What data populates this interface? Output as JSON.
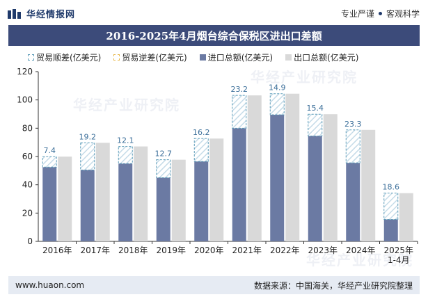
{
  "header": {
    "brand": "华经情报网",
    "slogan_left": "专业严谨",
    "slogan_right": "客观科学"
  },
  "watermark": "华经产业研究院",
  "footer": {
    "website": "www.huaon.com",
    "source": "数据来源：中国海关，华经产业研究院整理"
  },
  "colors": {
    "title_bg": "#3c4b7a",
    "import": "#6b7aa3",
    "export": "#d9d9d9",
    "surplus_border": "#5a9bb8",
    "deficit_border": "#e8b84a"
  },
  "chart_data": {
    "type": "bar",
    "title": "2016-2025年4月烟台综合保税区进出口差额",
    "categories": [
      "2016年",
      "2017年",
      "2018年",
      "2019年",
      "2020年",
      "2021年",
      "2022年",
      "2023年",
      "2024年",
      "2025年\n1-4月"
    ],
    "series": [
      {
        "name": "贸易顺差(亿美元)",
        "values": [
          7.4,
          19.2,
          12.1,
          12.7,
          16.2,
          23.2,
          14.9,
          15.4,
          23.3,
          18.6
        ]
      },
      {
        "name": "贸易逆差(亿美元)",
        "values": [
          0,
          0,
          0,
          0,
          0,
          0,
          0,
          0,
          0,
          0
        ]
      },
      {
        "name": "进口总额(亿美元)",
        "values": [
          52.5,
          50.5,
          55,
          45,
          56.5,
          80,
          89.5,
          74.5,
          55.5,
          15.5
        ]
      },
      {
        "name": "出口总额(亿美元)",
        "values": [
          59.9,
          69.7,
          67.1,
          57.7,
          72.7,
          103.2,
          104.4,
          89.9,
          78.8,
          34.1
        ]
      }
    ],
    "data_labels": [
      "7.4",
      "19.2",
      "12.1",
      "12.7",
      "16.2",
      "23.2",
      "14.9",
      "15.4",
      "23.3",
      "18.6"
    ],
    "ylim": [
      0,
      120
    ],
    "yticks": [
      "0",
      "20",
      "40",
      "60",
      "80",
      "100",
      "120"
    ],
    "xlabel": "",
    "ylabel": ""
  }
}
